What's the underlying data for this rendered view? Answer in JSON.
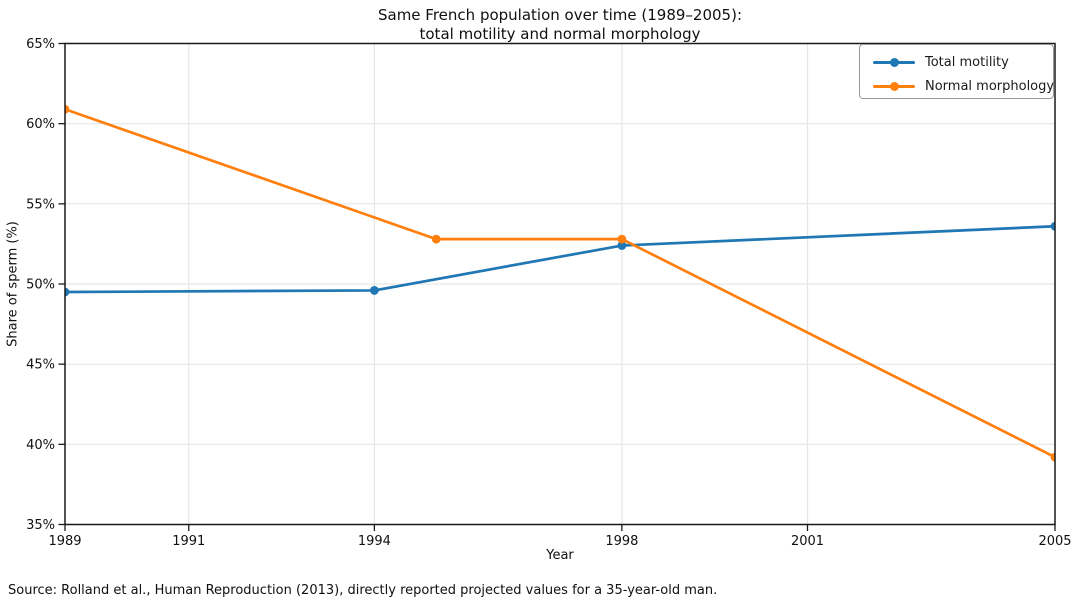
{
  "source_note": "Source: Rolland et al., Human Reproduction (2013), directly reported projected values for a 35-year-old man.",
  "chart_data": {
    "type": "line",
    "title": "Same French population over time (1989–2005):\ntotal motility and normal morphology",
    "title_lines": [
      "Same French population over time (1989–2005):",
      "total motility and normal morphology"
    ],
    "xlabel": "Year",
    "ylabel": "Share of sperm (%)",
    "xlim": [
      1989,
      2005
    ],
    "ylim": [
      35,
      65
    ],
    "xticks": {
      "values": [
        1989,
        1991,
        1994,
        1998,
        2001,
        2005
      ],
      "labels": [
        "1989",
        "1991",
        "1994",
        "1998",
        "2001",
        "2005"
      ]
    },
    "yticks": {
      "values": [
        35,
        40,
        45,
        50,
        55,
        60,
        65
      ],
      "labels": [
        "35%",
        "40%",
        "45%",
        "50%",
        "55%",
        "60%",
        "65%"
      ]
    },
    "grid": true,
    "legend_position": "upper right",
    "series": [
      {
        "name": "Total motility",
        "color": "#1f77b4",
        "marker": "circle",
        "x": [
          1989,
          1994,
          1998,
          2005
        ],
        "y": [
          49.5,
          49.6,
          52.4,
          53.6
        ]
      },
      {
        "name": "Normal morphology",
        "color": "#ff7f0e",
        "marker": "circle",
        "x": [
          1989,
          1995,
          1998,
          2005
        ],
        "y": [
          60.9,
          52.8,
          52.8,
          39.2
        ]
      }
    ]
  }
}
